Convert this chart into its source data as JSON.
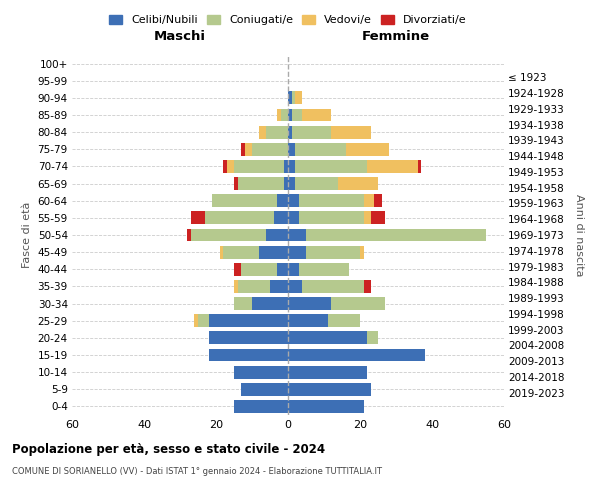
{
  "age_groups": [
    "0-4",
    "5-9",
    "10-14",
    "15-19",
    "20-24",
    "25-29",
    "30-34",
    "35-39",
    "40-44",
    "45-49",
    "50-54",
    "55-59",
    "60-64",
    "65-69",
    "70-74",
    "75-79",
    "80-84",
    "85-89",
    "90-94",
    "95-99",
    "100+"
  ],
  "birth_years": [
    "2019-2023",
    "2014-2018",
    "2009-2013",
    "2004-2008",
    "1999-2003",
    "1994-1998",
    "1989-1993",
    "1984-1988",
    "1979-1983",
    "1974-1978",
    "1969-1973",
    "1964-1968",
    "1959-1963",
    "1954-1958",
    "1949-1953",
    "1944-1948",
    "1939-1943",
    "1934-1938",
    "1929-1933",
    "1924-1928",
    "≤ 1923"
  ],
  "colors": {
    "celibe": "#3d6fb5",
    "coniugato": "#b5c98e",
    "vedovo": "#f0c060",
    "divorziato": "#cc2222"
  },
  "maschi": {
    "celibe": [
      15,
      13,
      15,
      22,
      22,
      22,
      10,
      5,
      3,
      8,
      6,
      4,
      3,
      1,
      1,
      0,
      0,
      0,
      0,
      0,
      0
    ],
    "coniugato": [
      0,
      0,
      0,
      0,
      0,
      3,
      5,
      9,
      10,
      10,
      21,
      19,
      18,
      13,
      14,
      10,
      6,
      2,
      0,
      0,
      0
    ],
    "vedovo": [
      0,
      0,
      0,
      0,
      0,
      1,
      0,
      1,
      0,
      1,
      0,
      0,
      0,
      0,
      2,
      2,
      2,
      1,
      0,
      0,
      0
    ],
    "divorziato": [
      0,
      0,
      0,
      0,
      0,
      0,
      0,
      0,
      2,
      0,
      1,
      4,
      0,
      1,
      1,
      1,
      0,
      0,
      0,
      0,
      0
    ]
  },
  "femmine": {
    "nubile": [
      21,
      23,
      22,
      38,
      22,
      11,
      12,
      4,
      3,
      5,
      5,
      3,
      3,
      2,
      2,
      2,
      1,
      1,
      1,
      0,
      0
    ],
    "coniugata": [
      0,
      0,
      0,
      0,
      3,
      9,
      15,
      17,
      14,
      15,
      50,
      18,
      18,
      12,
      20,
      14,
      11,
      3,
      1,
      0,
      0
    ],
    "vedova": [
      0,
      0,
      0,
      0,
      0,
      0,
      0,
      0,
      0,
      1,
      0,
      2,
      3,
      11,
      14,
      12,
      11,
      8,
      2,
      0,
      0
    ],
    "divorziata": [
      0,
      0,
      0,
      0,
      0,
      0,
      0,
      2,
      0,
      0,
      0,
      4,
      2,
      0,
      1,
      0,
      0,
      0,
      0,
      0,
      0
    ]
  },
  "xlim": 60,
  "title1": "Popolazione per età, sesso e stato civile - 2024",
  "title2": "COMUNE DI SORIANELLO (VV) - Dati ISTAT 1° gennaio 2024 - Elaborazione TUTTITALIA.IT",
  "legend_labels": [
    "Celibi/Nubili",
    "Coniugati/e",
    "Vedovi/e",
    "Divorziati/e"
  ],
  "ylabel_left": "Fasce di età",
  "ylabel_right": "Anni di nascita",
  "xlabel_maschi": "Maschi",
  "xlabel_femmine": "Femmine"
}
